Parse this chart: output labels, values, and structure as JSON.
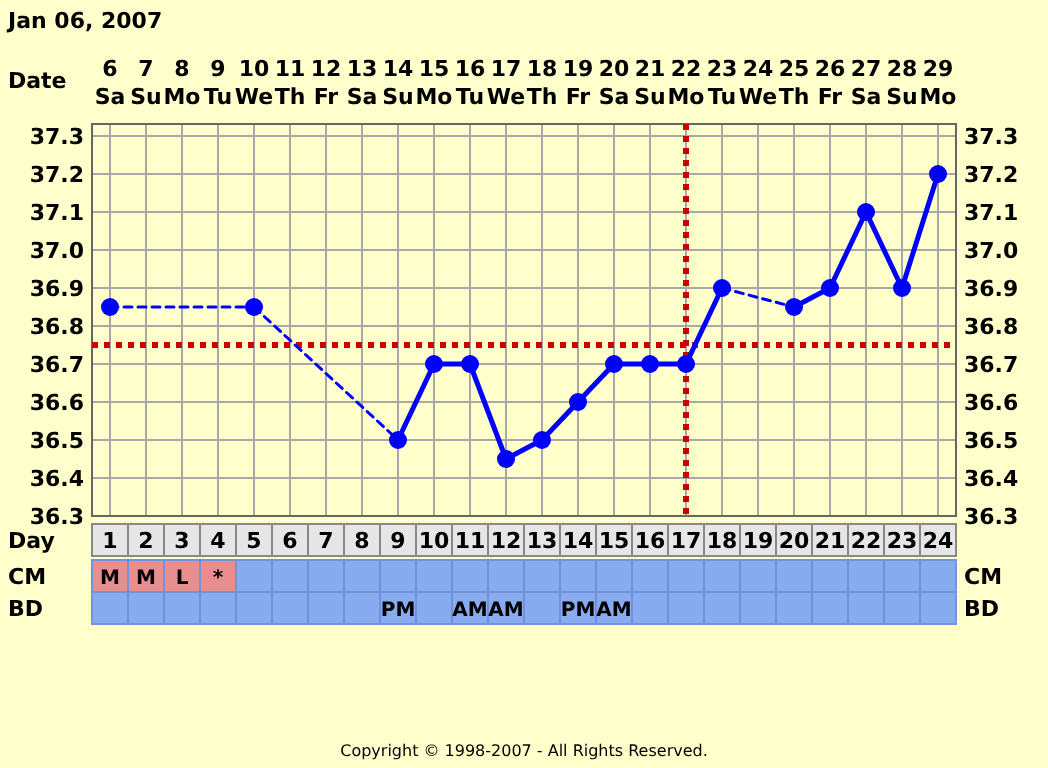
{
  "chart_data": [
    {
      "type": "line",
      "title": "Jan 06, 2007",
      "xlabel": "Day",
      "x2label": "Date",
      "x": [
        1,
        2,
        3,
        4,
        5,
        6,
        7,
        8,
        9,
        10,
        11,
        12,
        13,
        14,
        15,
        16,
        17,
        18,
        19,
        20,
        21,
        22,
        23,
        24
      ],
      "series": [
        {
          "color": "#0000ff",
          "values": [
            36.85,
            null,
            null,
            null,
            36.85,
            null,
            null,
            null,
            36.5,
            36.7,
            36.7,
            36.45,
            36.5,
            36.6,
            36.7,
            36.7,
            36.7,
            36.9,
            null,
            36.85,
            36.9,
            37.1,
            36.9,
            37.2
          ]
        }
      ],
      "xlim": [
        0.5,
        24.5
      ],
      "xticks": [
        1,
        2,
        3,
        4,
        5,
        6,
        7,
        8,
        9,
        10,
        11,
        12,
        13,
        14,
        15,
        16,
        17,
        18,
        19,
        20,
        21,
        22,
        23,
        24
      ],
      "x2lim": [
        "2007-01-05T12:00",
        "2007-01-29T12:00"
      ],
      "x2ticks": [
        {
          "value": "2007-01-06",
          "label": "6 Sa"
        },
        {
          "value": "2007-01-07",
          "label": "7 Su"
        },
        {
          "value": "2007-01-08",
          "label": "8 Mo"
        },
        {
          "value": "2007-01-09",
          "label": "9 Tu"
        },
        {
          "value": "2007-01-10",
          "label": "10 We"
        },
        {
          "value": "2007-01-11",
          "label": "11 Th"
        },
        {
          "value": "2007-01-12",
          "label": "12 Fr"
        },
        {
          "value": "2007-01-13",
          "label": "13 Sa"
        },
        {
          "value": "2007-01-14",
          "label": "14 Su"
        },
        {
          "value": "2007-01-15",
          "label": "15 Mo"
        },
        {
          "value": "2007-01-16",
          "label": "16 Tu"
        },
        {
          "value": "2007-01-17",
          "label": "17 We"
        },
        {
          "value": "2007-01-18",
          "label": "18 Th"
        },
        {
          "value": "2007-01-19",
          "label": "19 Fr"
        },
        {
          "value": "2007-01-20",
          "label": "20 Sa"
        },
        {
          "value": "2007-01-21",
          "label": "21 Su"
        },
        {
          "value": "2007-01-22",
          "label": "22 Mo"
        },
        {
          "value": "2007-01-23",
          "label": "23 Tu"
        },
        {
          "value": "2007-01-24",
          "label": "24 We"
        },
        {
          "value": "2007-01-25",
          "label": "25 Th"
        },
        {
          "value": "2007-01-26",
          "label": "26 Fr"
        },
        {
          "value": "2007-01-27",
          "label": "27 Sa"
        },
        {
          "value": "2007-01-28",
          "label": "28 Su"
        },
        {
          "value": "2007-01-29",
          "label": "29 Mo"
        }
      ],
      "ylim": [
        36.3,
        37.3
      ],
      "yticks": [
        {
          "value": 36.3,
          "label": "36.3"
        },
        {
          "value": 36.4,
          "label": "36.4"
        },
        {
          "value": 36.5,
          "label": "36.5"
        },
        {
          "value": 36.6,
          "label": "36.6"
        },
        {
          "value": 36.7,
          "label": "36.7"
        },
        {
          "value": 36.8,
          "label": "36.8"
        },
        {
          "value": 36.9,
          "label": "36.9"
        },
        {
          "value": 37.0,
          "label": "37.0"
        },
        {
          "value": 37.1,
          "label": "37.1"
        },
        {
          "value": 37.2,
          "label": "37.2"
        },
        {
          "value": 37.3,
          "label": "37.3"
        }
      ],
      "y2lim": [
        36.3,
        37.3
      ],
      "y2ticks": [
        {
          "value": 36.3,
          "label": "36.3"
        },
        {
          "value": 36.4,
          "label": "36.4"
        },
        {
          "value": 36.5,
          "label": "36.5"
        },
        {
          "value": 36.6,
          "label": "36.6"
        },
        {
          "value": 36.7,
          "label": "36.7"
        },
        {
          "value": 36.8,
          "label": "36.8"
        },
        {
          "value": 36.9,
          "label": "36.9"
        },
        {
          "value": 37.0,
          "label": "37.0"
        },
        {
          "value": 37.1,
          "label": "37.1"
        },
        {
          "value": 37.2,
          "label": "37.2"
        },
        {
          "value": 37.3,
          "label": "37.3"
        }
      ],
      "grid": true,
      "marker": "circle",
      "line_style": "solid",
      "ref_lines": [
        {
          "axis": "y",
          "value": 36.75,
          "color": "#cc0000",
          "line_style": "dotted"
        },
        {
          "axis": "x",
          "value": 17,
          "color": "#cc0000",
          "line_style": "dotted"
        }
      ],
      "annotations": [
        "Copyright © 1998-2007 - All Rights Reserved."
      ]
    },
    {
      "type": "heatmap",
      "categories": [
        null,
        null,
        null,
        null,
        null,
        null,
        null,
        null,
        null,
        null,
        null,
        null,
        null,
        null,
        null,
        null,
        null,
        null,
        null,
        null,
        null,
        null,
        null,
        null
      ],
      "y_categories": [
        "CM",
        "BD"
      ],
      "y2_categories": [
        "CM",
        "BD"
      ],
      "cells": [
        [
          null,
          null,
          null,
          null,
          null,
          null,
          null,
          null,
          null,
          null,
          null,
          null,
          null,
          null,
          null,
          null,
          null,
          null,
          null,
          null,
          null,
          null,
          null,
          null
        ],
        [
          null,
          null,
          null,
          null,
          null,
          null,
          null,
          null,
          null,
          null,
          null,
          null,
          null,
          null,
          null,
          null,
          null,
          null,
          null,
          null,
          null,
          null,
          null,
          null
        ]
      ],
      "cell_labels": [
        [
          "M",
          "M",
          "L",
          "*",
          null,
          null,
          null,
          null,
          null,
          null,
          null,
          null,
          null,
          null,
          null,
          null,
          null,
          null,
          null,
          null,
          null,
          null,
          null,
          null
        ],
        [
          null,
          null,
          null,
          null,
          null,
          null,
          null,
          null,
          "PM",
          null,
          "AM",
          "AM",
          null,
          "PM",
          "AM",
          null,
          null,
          null,
          null,
          null,
          null,
          null,
          null,
          null
        ]
      ]
    }
  ]
}
